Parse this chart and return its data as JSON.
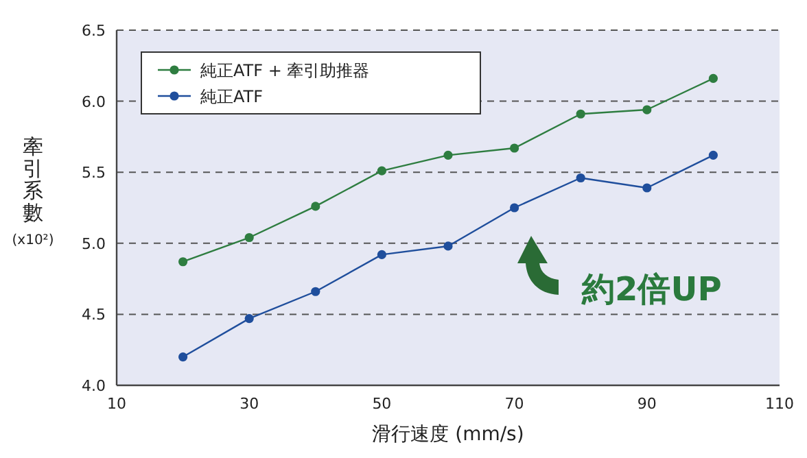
{
  "chart_data": {
    "type": "line",
    "xlabel": "滑行速度 (mm/s)",
    "ylabel": "牽引系數(x10²)",
    "x": [
      20,
      30,
      40,
      50,
      60,
      70,
      80,
      90,
      100
    ],
    "series": [
      {
        "name": "純正ATF + 牽引助推器",
        "color": "#2e7d40",
        "values": [
          4.87,
          5.04,
          5.26,
          5.51,
          5.62,
          5.67,
          5.91,
          5.94,
          6.16
        ]
      },
      {
        "name": "純正ATF",
        "color": "#1f4e9c",
        "values": [
          4.2,
          4.47,
          4.66,
          4.92,
          4.98,
          5.25,
          5.46,
          5.39,
          5.62
        ]
      }
    ],
    "xlim": [
      10,
      110
    ],
    "xticks": [
      10,
      30,
      50,
      70,
      90,
      110
    ],
    "ylim": [
      4,
      6.5
    ],
    "yticks": [
      {
        "value": 4,
        "label": "4.0"
      },
      {
        "value": 4.5,
        "label": "4.5"
      },
      {
        "value": 5,
        "label": "5.0"
      },
      {
        "value": 5.5,
        "label": "5.5"
      },
      {
        "value": 6,
        "label": "6.0"
      },
      {
        "value": 6.5,
        "label": "6.5"
      }
    ],
    "grid": "y",
    "legend": "top left",
    "marker": "circle",
    "line_style": "solid",
    "annotations": [
      "約2倍UP"
    ]
  }
}
